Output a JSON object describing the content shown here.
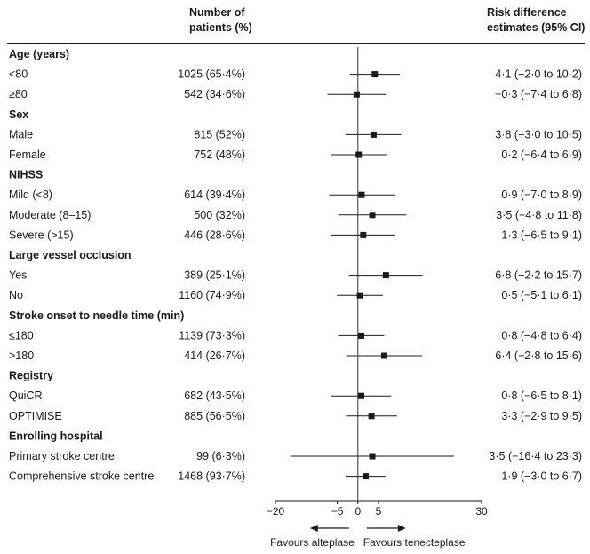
{
  "headers": {
    "n_line1": "Number of",
    "n_line2": "patients (%)",
    "rd_line1": "Risk difference",
    "rd_line2": "estimates (95% CI)"
  },
  "chart_data": {
    "type": "forest",
    "xlim": [
      -20,
      30
    ],
    "x_ticks": [
      -20,
      -5,
      0,
      5,
      30
    ],
    "x_tick_labels": [
      "−20",
      "−5",
      "0",
      "5",
      "30"
    ],
    "reference_line": 0,
    "favours_left": "Favours alteplase",
    "favours_right": "Favours tenecteplase",
    "rows": [
      {
        "kind": "group",
        "label": "Age (years)"
      },
      {
        "kind": "item",
        "label": "<80",
        "n": "1025 (65·4%)",
        "est": 4.1,
        "lo": -2.0,
        "hi": 10.2,
        "text": "4·1 (−2·0 to 10·2)"
      },
      {
        "kind": "item",
        "label": "≥80",
        "n": "542 (34·6%)",
        "est": -0.3,
        "lo": -7.4,
        "hi": 6.8,
        "text": "−0·3 (−7·4 to 6·8)"
      },
      {
        "kind": "group",
        "label": "Sex"
      },
      {
        "kind": "item",
        "label": "Male",
        "n": "815 (52%)",
        "est": 3.8,
        "lo": -3.0,
        "hi": 10.5,
        "text": "3·8 (−3·0 to 10·5)"
      },
      {
        "kind": "item",
        "label": "Female",
        "n": "752 (48%)",
        "est": 0.2,
        "lo": -6.4,
        "hi": 6.9,
        "text": "0·2 (−6·4 to 6·9)"
      },
      {
        "kind": "group",
        "label": "NIHSS"
      },
      {
        "kind": "item",
        "label": "Mild (<8)",
        "n": "614 (39·4%)",
        "est": 0.9,
        "lo": -7.0,
        "hi": 8.9,
        "text": "0·9 (−7·0 to 8·9)"
      },
      {
        "kind": "item",
        "label": "Moderate (8–15)",
        "n": "500 (32%)",
        "est": 3.5,
        "lo": -4.8,
        "hi": 11.8,
        "text": "3·5 (−4·8 to 11·8)"
      },
      {
        "kind": "item",
        "label": "Severe (>15)",
        "n": "446 (28·6%)",
        "est": 1.3,
        "lo": -6.5,
        "hi": 9.1,
        "text": "1·3 (−6·5 to 9·1)"
      },
      {
        "kind": "group",
        "label": "Large vessel occlusion"
      },
      {
        "kind": "item",
        "label": "Yes",
        "n": "389 (25·1%)",
        "est": 6.8,
        "lo": -2.2,
        "hi": 15.7,
        "text": "6·8 (−2·2 to 15·7)"
      },
      {
        "kind": "item",
        "label": "No",
        "n": "1160 (74·9%)",
        "est": 0.5,
        "lo": -5.1,
        "hi": 6.1,
        "text": "0·5 (−5·1 to 6·1)"
      },
      {
        "kind": "group",
        "label": "Stroke onset to needle time (min)"
      },
      {
        "kind": "item",
        "label": "≤180",
        "n": "1139 (73·3%)",
        "est": 0.8,
        "lo": -4.8,
        "hi": 6.4,
        "text": "0·8 (−4·8 to 6·4)"
      },
      {
        "kind": "item",
        "label": ">180",
        "n": "414 (26·7%)",
        "est": 6.4,
        "lo": -2.8,
        "hi": 15.6,
        "text": "6·4 (−2·8 to 15·6)"
      },
      {
        "kind": "group",
        "label": "Registry"
      },
      {
        "kind": "item",
        "label": "QuiCR",
        "n": "682 (43·5%)",
        "est": 0.8,
        "lo": -6.5,
        "hi": 8.1,
        "text": "0·8 (−6·5 to 8·1)"
      },
      {
        "kind": "item",
        "label": "OPTIMISE",
        "n": "885 (56·5%)",
        "est": 3.3,
        "lo": -2.9,
        "hi": 9.5,
        "text": "3·3 (−2·9 to 9·5)"
      },
      {
        "kind": "group",
        "label": "Enrolling hospital"
      },
      {
        "kind": "item",
        "label": "Primary stroke centre",
        "n": "99 (6·3%)",
        "est": 3.5,
        "lo": -16.4,
        "hi": 23.3,
        "text": "3·5 (−16·4 to 23·3)"
      },
      {
        "kind": "item",
        "label": "Comprehensive stroke centre",
        "n": "1468 (93·7%)",
        "est": 1.9,
        "lo": -3.0,
        "hi": 6.7,
        "text": "1·9 (−3·0 to 6·7)"
      }
    ]
  }
}
